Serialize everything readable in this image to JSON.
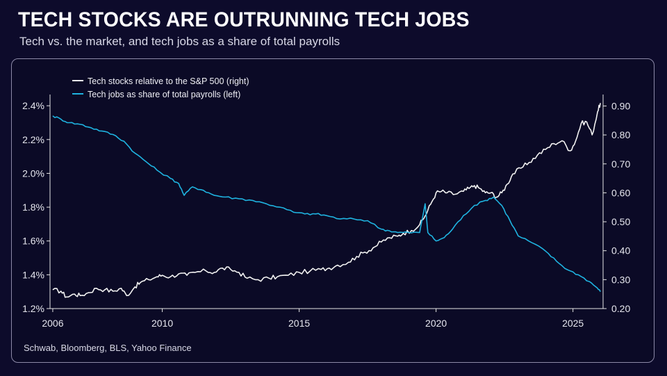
{
  "header": {
    "title": "TECH STOCKS ARE OUTRUNNING TECH JOBS",
    "subtitle": "Tech vs. the market, and tech jobs as a share of total payrolls"
  },
  "footer": {
    "source": "Schwab, Bloomberg, BLS, Yahoo Finance"
  },
  "colors": {
    "background": "#0d0b2b",
    "stocks_line": "#f2f2f2",
    "jobs_line": "#1fb3e0",
    "axis": "#e6e6e6"
  },
  "chart_data": {
    "type": "line",
    "title": "TECH STOCKS ARE OUTRUNNING TECH JOBS",
    "subtitle": "Tech vs. the market, and tech jobs as a share of total payrolls",
    "legend_position": "top-left",
    "grid": false,
    "x_ticks": [
      "2006",
      "2010",
      "2015",
      "2020",
      "2025"
    ],
    "x_tick_values": [
      2006,
      2010,
      2015,
      2020,
      2025
    ],
    "xlim": [
      2005.9,
      2026.1
    ],
    "y_left": {
      "ylim": [
        1.2,
        2.45
      ],
      "ticks": [
        "2.4%",
        "2.2%",
        "2.0%",
        "1.8%",
        "1.6%",
        "1.4%",
        "1.2%"
      ],
      "tick_values": [
        2.4,
        2.2,
        2.0,
        1.8,
        1.6,
        1.4,
        1.2
      ]
    },
    "y_right": {
      "ylim": [
        0.2,
        0.93
      ],
      "ticks": [
        "0.90",
        "0.80",
        "0.70",
        "0.60",
        "0.50",
        "0.40",
        "0.30",
        "0.20"
      ],
      "tick_values": [
        0.9,
        0.8,
        0.7,
        0.6,
        0.5,
        0.4,
        0.3,
        0.2
      ]
    },
    "series": [
      {
        "name": "Tech stocks relative to the S&P 500 (right)",
        "axis": "right",
        "color": "#f2f2f2",
        "points": [
          [
            2006.0,
            0.265
          ],
          [
            2006.3,
            0.26
          ],
          [
            2006.5,
            0.24
          ],
          [
            2006.8,
            0.25
          ],
          [
            2007.0,
            0.245
          ],
          [
            2007.3,
            0.255
          ],
          [
            2007.6,
            0.27
          ],
          [
            2007.9,
            0.265
          ],
          [
            2008.2,
            0.26
          ],
          [
            2008.5,
            0.27
          ],
          [
            2008.7,
            0.245
          ],
          [
            2009.0,
            0.275
          ],
          [
            2009.2,
            0.29
          ],
          [
            2009.5,
            0.3
          ],
          [
            2009.8,
            0.31
          ],
          [
            2010.0,
            0.315
          ],
          [
            2010.3,
            0.31
          ],
          [
            2010.6,
            0.32
          ],
          [
            2010.9,
            0.315
          ],
          [
            2011.2,
            0.325
          ],
          [
            2011.6,
            0.33
          ],
          [
            2011.9,
            0.325
          ],
          [
            2012.2,
            0.34
          ],
          [
            2012.5,
            0.335
          ],
          [
            2012.8,
            0.325
          ],
          [
            2013.1,
            0.305
          ],
          [
            2013.5,
            0.3
          ],
          [
            2013.9,
            0.305
          ],
          [
            2014.2,
            0.31
          ],
          [
            2014.6,
            0.315
          ],
          [
            2015.0,
            0.325
          ],
          [
            2015.4,
            0.33
          ],
          [
            2015.8,
            0.335
          ],
          [
            2016.1,
            0.34
          ],
          [
            2016.4,
            0.35
          ],
          [
            2016.8,
            0.36
          ],
          [
            2017.1,
            0.38
          ],
          [
            2017.4,
            0.395
          ],
          [
            2017.7,
            0.41
          ],
          [
            2018.0,
            0.43
          ],
          [
            2018.3,
            0.445
          ],
          [
            2018.6,
            0.45
          ],
          [
            2018.8,
            0.46
          ],
          [
            2019.1,
            0.47
          ],
          [
            2019.4,
            0.49
          ],
          [
            2019.6,
            0.52
          ],
          [
            2019.8,
            0.56
          ],
          [
            2020.0,
            0.6
          ],
          [
            2020.2,
            0.605
          ],
          [
            2020.4,
            0.6
          ],
          [
            2020.7,
            0.595
          ],
          [
            2021.0,
            0.605
          ],
          [
            2021.2,
            0.615
          ],
          [
            2021.4,
            0.625
          ],
          [
            2021.6,
            0.615
          ],
          [
            2021.8,
            0.6
          ],
          [
            2022.0,
            0.6
          ],
          [
            2022.2,
            0.585
          ],
          [
            2022.4,
            0.6
          ],
          [
            2022.6,
            0.63
          ],
          [
            2022.8,
            0.665
          ],
          [
            2023.1,
            0.685
          ],
          [
            2023.4,
            0.705
          ],
          [
            2023.7,
            0.73
          ],
          [
            2024.0,
            0.75
          ],
          [
            2024.3,
            0.77
          ],
          [
            2024.6,
            0.78
          ],
          [
            2024.9,
            0.745
          ],
          [
            2025.1,
            0.78
          ],
          [
            2025.3,
            0.84
          ],
          [
            2025.5,
            0.845
          ],
          [
            2025.7,
            0.8
          ],
          [
            2025.9,
            0.88
          ],
          [
            2026.0,
            0.91
          ]
        ]
      },
      {
        "name": "Tech jobs as share of total payrolls (left)",
        "axis": "left",
        "color": "#1fb3e0",
        "points": [
          [
            2006.0,
            2.34
          ],
          [
            2006.3,
            2.32
          ],
          [
            2006.6,
            2.3
          ],
          [
            2007.0,
            2.29
          ],
          [
            2007.4,
            2.27
          ],
          [
            2007.8,
            2.25
          ],
          [
            2008.2,
            2.23
          ],
          [
            2008.6,
            2.19
          ],
          [
            2009.0,
            2.12
          ],
          [
            2009.4,
            2.07
          ],
          [
            2009.8,
            2.02
          ],
          [
            2010.3,
            1.97
          ],
          [
            2010.6,
            1.94
          ],
          [
            2010.8,
            1.87
          ],
          [
            2011.1,
            1.92
          ],
          [
            2011.5,
            1.9
          ],
          [
            2011.9,
            1.87
          ],
          [
            2012.3,
            1.86
          ],
          [
            2012.8,
            1.85
          ],
          [
            2013.3,
            1.84
          ],
          [
            2013.8,
            1.82
          ],
          [
            2014.3,
            1.8
          ],
          [
            2014.8,
            1.77
          ],
          [
            2015.2,
            1.76
          ],
          [
            2015.6,
            1.76
          ],
          [
            2016.0,
            1.75
          ],
          [
            2016.5,
            1.73
          ],
          [
            2017.0,
            1.73
          ],
          [
            2017.5,
            1.72
          ],
          [
            2018.0,
            1.67
          ],
          [
            2018.3,
            1.66
          ],
          [
            2018.6,
            1.65
          ],
          [
            2019.0,
            1.65
          ],
          [
            2019.4,
            1.65
          ],
          [
            2019.6,
            1.82
          ],
          [
            2019.7,
            1.65
          ],
          [
            2020.0,
            1.6
          ],
          [
            2020.3,
            1.62
          ],
          [
            2020.6,
            1.67
          ],
          [
            2021.0,
            1.75
          ],
          [
            2021.4,
            1.81
          ],
          [
            2021.8,
            1.84
          ],
          [
            2022.1,
            1.86
          ],
          [
            2022.4,
            1.81
          ],
          [
            2022.7,
            1.72
          ],
          [
            2023.0,
            1.63
          ],
          [
            2023.5,
            1.59
          ],
          [
            2024.0,
            1.54
          ],
          [
            2024.4,
            1.48
          ],
          [
            2024.8,
            1.43
          ],
          [
            2025.2,
            1.4
          ],
          [
            2025.6,
            1.36
          ],
          [
            2025.9,
            1.32
          ],
          [
            2026.0,
            1.3
          ]
        ]
      }
    ]
  }
}
